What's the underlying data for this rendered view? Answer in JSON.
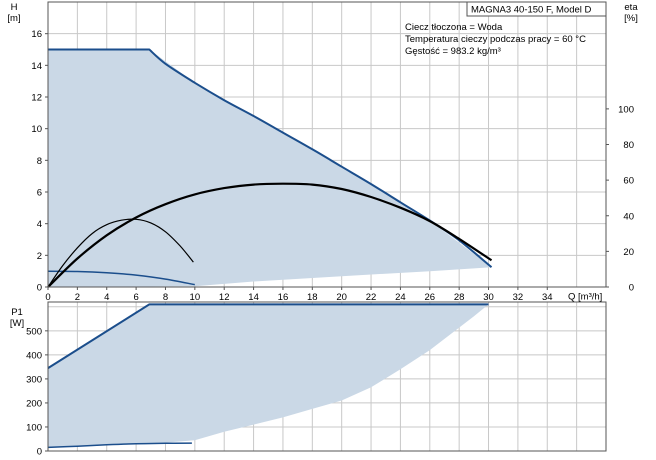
{
  "chart_data": [
    {
      "type": "line",
      "title": "MAGNA3 40-150 F, Model D",
      "info_lines": [
        "Ciecz tłoczona = Woda",
        "Temperatura cieczy podczas pracy = 60 °C",
        "Gęstość = 983.2 kg/m³"
      ],
      "xlabel": "Q [m³/h]",
      "ylabel_left": "H\n[m]",
      "ylabel_right": "eta\n[%]",
      "xlim": [
        0,
        38
      ],
      "ylim_left": [
        0,
        18
      ],
      "ylim_right": [
        0,
        160
      ],
      "x_ticks": [
        0,
        2,
        4,
        6,
        8,
        10,
        12,
        14,
        16,
        18,
        20,
        22,
        24,
        26,
        28,
        30,
        32,
        34
      ],
      "y_ticks_left": [
        0,
        2,
        4,
        6,
        8,
        10,
        12,
        14,
        16
      ],
      "y_ticks_right": [
        0,
        20,
        40,
        60,
        80,
        100
      ],
      "operating_area": [
        [
          0,
          15
        ],
        [
          6.9,
          15
        ],
        [
          10,
          12.9
        ],
        [
          14,
          10.8
        ],
        [
          18,
          8.7
        ],
        [
          22,
          6.5
        ],
        [
          26,
          4.2
        ],
        [
          30.2,
          1.25
        ],
        [
          26,
          1.0
        ],
        [
          20,
          0.68
        ],
        [
          14,
          0.35
        ],
        [
          10,
          0.05
        ],
        [
          0,
          0
        ]
      ],
      "colors": {
        "area": "#cad8e6",
        "max_curve": "#1b4e8c",
        "min_curve": "#1b4e8c",
        "eta": "#000000",
        "grid": "#c8c8c8"
      },
      "series": [
        {
          "role": "head_max",
          "axis": "left",
          "points": [
            [
              0,
              15
            ],
            [
              6.9,
              15
            ],
            [
              8,
              14.1
            ],
            [
              10,
              12.9
            ],
            [
              12,
              11.8
            ],
            [
              14,
              10.8
            ],
            [
              16,
              9.75
            ],
            [
              18,
              8.7
            ],
            [
              20,
              7.6
            ],
            [
              22,
              6.5
            ],
            [
              24,
              5.35
            ],
            [
              26,
              4.2
            ],
            [
              28,
              2.95
            ],
            [
              30.2,
              1.25
            ]
          ]
        },
        {
          "role": "head_min",
          "axis": "left",
          "points": [
            [
              0,
              1.0
            ],
            [
              2,
              0.98
            ],
            [
              4,
              0.9
            ],
            [
              6,
              0.75
            ],
            [
              8,
              0.5
            ],
            [
              10,
              0.15
            ]
          ]
        },
        {
          "role": "eta_max",
          "axis": "right",
          "points": [
            [
              0,
              0
            ],
            [
              2,
              16
            ],
            [
              4,
              29
            ],
            [
              6,
              39
            ],
            [
              8,
              46.5
            ],
            [
              10,
              52
            ],
            [
              12,
              55.5
            ],
            [
              14,
              57.5
            ],
            [
              16,
              58
            ],
            [
              18,
              57.5
            ],
            [
              20,
              55
            ],
            [
              22,
              50.5
            ],
            [
              24,
              44.5
            ],
            [
              26,
              37
            ],
            [
              28,
              27
            ],
            [
              30.2,
              15
            ]
          ]
        },
        {
          "role": "eta_min",
          "axis": "right",
          "points": [
            [
              0,
              0
            ],
            [
              1,
              12
            ],
            [
              2,
              22
            ],
            [
              3,
              30
            ],
            [
              4,
              35
            ],
            [
              5,
              37.5
            ],
            [
              6,
              38
            ],
            [
              7,
              36
            ],
            [
              8,
              31
            ],
            [
              9,
              23
            ],
            [
              9.9,
              14
            ]
          ]
        }
      ]
    },
    {
      "type": "line",
      "xlabel": "",
      "ylabel": "P1\n[W]",
      "xlim": [
        0,
        38
      ],
      "ylim": [
        0,
        620
      ],
      "y_ticks": [
        0,
        100,
        200,
        300,
        400,
        500
      ],
      "operating_area": [
        [
          0,
          345
        ],
        [
          6.9,
          610
        ],
        [
          30,
          610
        ],
        [
          29,
          560
        ],
        [
          26,
          420
        ],
        [
          24,
          340
        ],
        [
          22,
          265
        ],
        [
          20,
          210
        ],
        [
          18,
          175
        ],
        [
          16,
          140
        ],
        [
          14,
          110
        ],
        [
          12,
          80
        ],
        [
          10,
          45
        ],
        [
          8,
          35
        ],
        [
          0,
          15
        ]
      ],
      "series": [
        {
          "role": "power_max",
          "points": [
            [
              0,
              345
            ],
            [
              6.9,
              610
            ],
            [
              30,
              610
            ]
          ]
        },
        {
          "role": "power_min",
          "points": [
            [
              0,
              15
            ],
            [
              2,
              20
            ],
            [
              4,
              26
            ],
            [
              6,
              30
            ],
            [
              8,
              32
            ],
            [
              9.8,
              33
            ]
          ]
        }
      ]
    }
  ]
}
